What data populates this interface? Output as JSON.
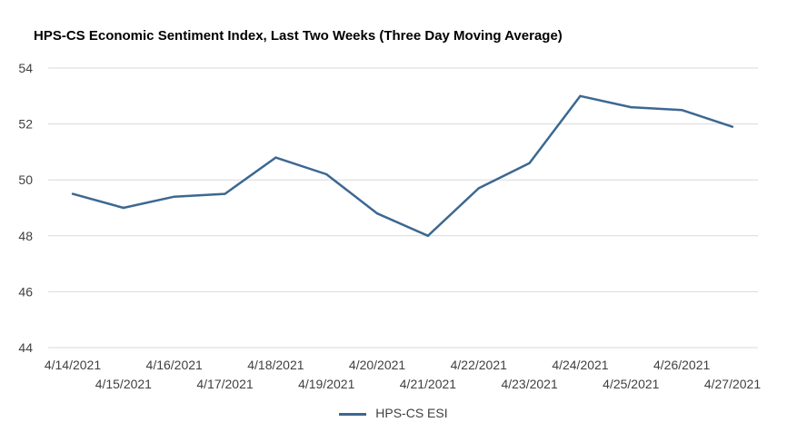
{
  "chart_data": {
    "type": "line",
    "title": "HPS-CS Economic Sentiment Index, Last Two Weeks (Three Day Moving Average)",
    "xlabel": "",
    "ylabel": "",
    "categories": [
      "4/14/2021",
      "4/15/2021",
      "4/16/2021",
      "4/17/2021",
      "4/18/2021",
      "4/19/2021",
      "4/20/2021",
      "4/21/2021",
      "4/22/2021",
      "4/23/2021",
      "4/24/2021",
      "4/25/2021",
      "4/26/2021",
      "4/27/2021"
    ],
    "series": [
      {
        "name": "HPS-CS ESI",
        "color": "#3c6891",
        "values": [
          49.5,
          49.0,
          49.4,
          49.5,
          50.8,
          50.2,
          48.8,
          48.0,
          49.7,
          50.6,
          53.0,
          52.6,
          52.5,
          51.9
        ]
      }
    ],
    "ylim": [
      44,
      54
    ],
    "yticks": [
      44,
      46,
      48,
      50,
      52,
      54
    ],
    "grid": true,
    "legend_position": "bottom"
  }
}
